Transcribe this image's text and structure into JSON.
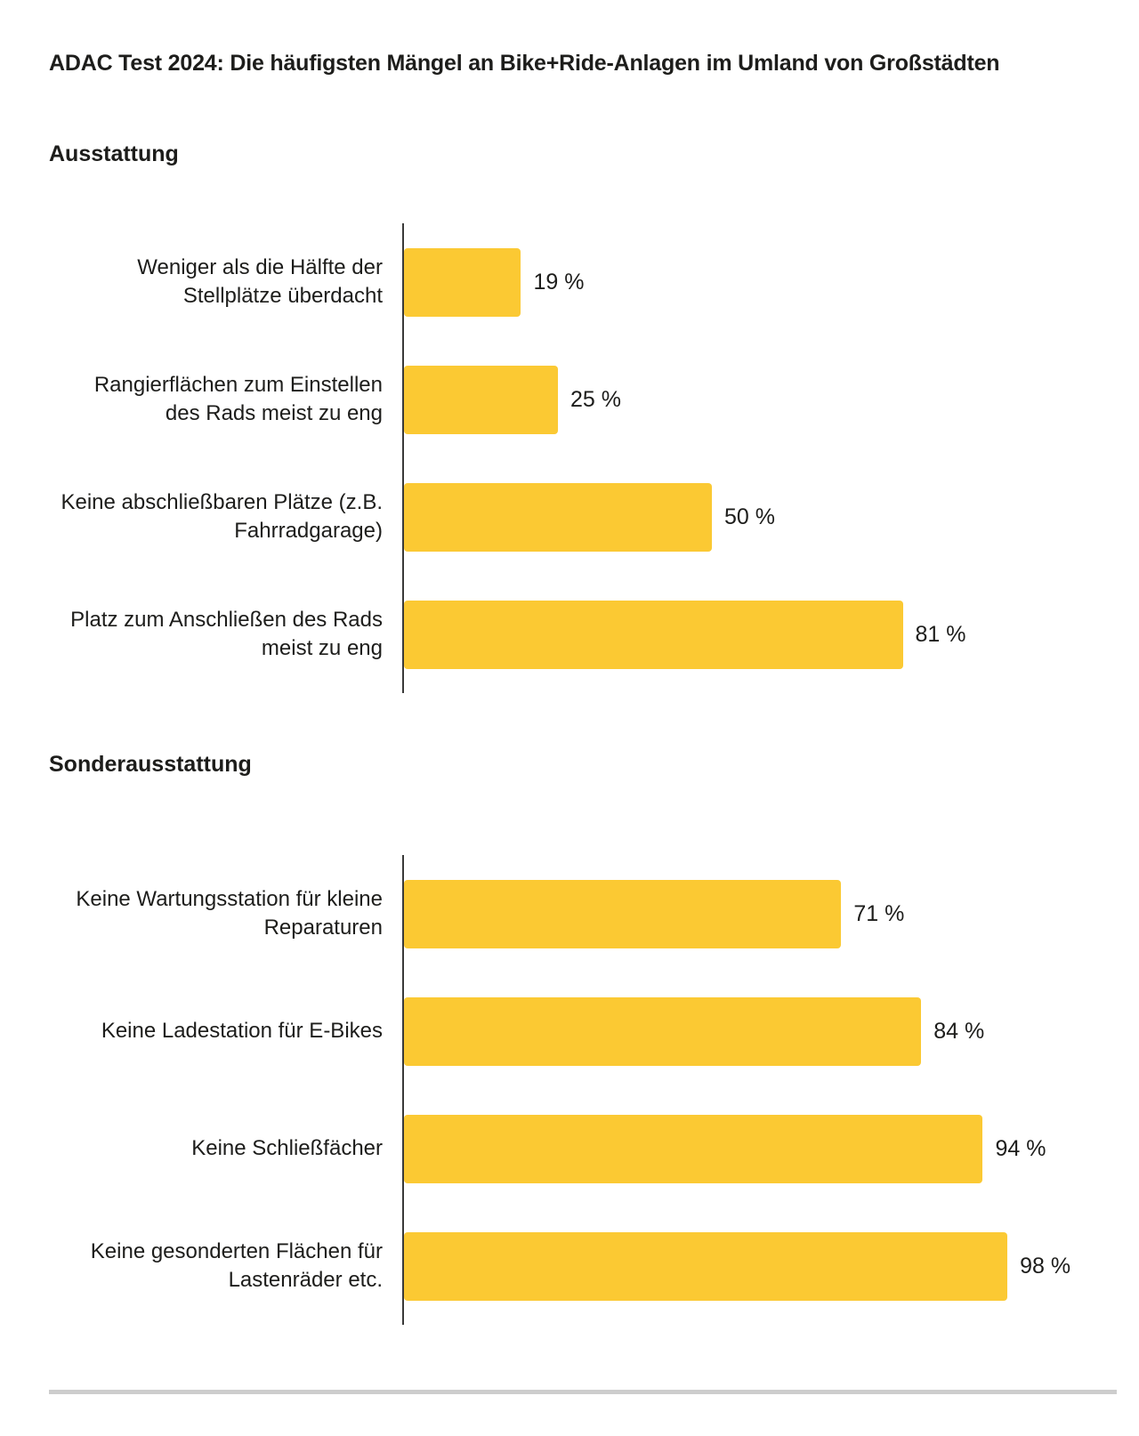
{
  "title": "ADAC Test 2024: Die häufigsten Mängel an Bike+Ride-Anlagen im Umland von Großstädten",
  "colors": {
    "bar": "#FBC933",
    "text": "#1D1D1B",
    "axis": "#3A3A39",
    "divider": "#CDCDCD",
    "background": "#FFFFFF"
  },
  "chart_data": [
    {
      "type": "bar",
      "orientation": "horizontal",
      "section_title": "Ausstattung",
      "unit": "%",
      "xlim": [
        0,
        100
      ],
      "grid": false,
      "legend": false,
      "categories": [
        "Weniger als die Hälfte der Stellplätze überdacht",
        "Rangierflächen zum Einstellen des Rads meist zu eng",
        "Keine abschließbaren Plätze (z.B. Fahrradgarage)",
        "Platz zum Anschließen des Rads meist zu eng"
      ],
      "values": [
        19,
        25,
        50,
        81
      ],
      "rows": [
        {
          "label": "Weniger als die Hälfte der\nStellplätze überdacht",
          "value": 19,
          "value_label": "19 %"
        },
        {
          "label": "Rangierflächen zum Einstellen\ndes Rads meist zu eng",
          "value": 25,
          "value_label": "25 %"
        },
        {
          "label": "Keine abschließbaren Plätze (z.B.\nFahrradgarage)",
          "value": 50,
          "value_label": "50 %"
        },
        {
          "label": "Platz zum Anschließen des Rads\nmeist zu eng",
          "value": 81,
          "value_label": "81 %"
        }
      ]
    },
    {
      "type": "bar",
      "orientation": "horizontal",
      "section_title": "Sonderausstattung",
      "unit": "%",
      "xlim": [
        0,
        100
      ],
      "grid": false,
      "legend": false,
      "categories": [
        "Keine Wartungsstation für kleine Reparaturen",
        "Keine Ladestation für E-Bikes",
        "Keine Schließfächer",
        "Keine gesonderten Flächen für Lastenräder etc."
      ],
      "values": [
        71,
        84,
        94,
        98
      ],
      "rows": [
        {
          "label": "Keine Wartungsstation für kleine\nReparaturen",
          "value": 71,
          "value_label": "71 %"
        },
        {
          "label": "Keine Ladestation für E-Bikes",
          "value": 84,
          "value_label": "84 %"
        },
        {
          "label": "Keine Schließfächer",
          "value": 94,
          "value_label": "94 %"
        },
        {
          "label": "Keine gesonderten Flächen für\nLastenräder etc.",
          "value": 98,
          "value_label": "98 %"
        }
      ]
    }
  ]
}
